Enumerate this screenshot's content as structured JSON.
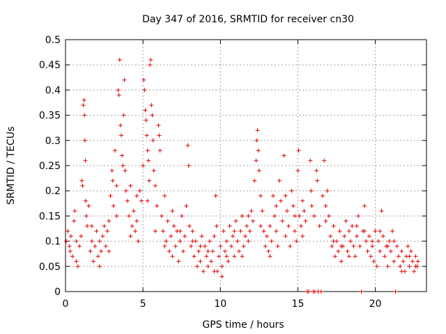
{
  "chart_data": {
    "type": "scatter",
    "title": "Day 347 of 2016, SRMTID for receiver cn30",
    "xlabel": "GPS time / hours",
    "ylabel": "SRMTID / TECUs",
    "xlim": [
      0,
      23.3
    ],
    "ylim": [
      0,
      0.5
    ],
    "x_ticks": [
      0,
      5,
      10,
      15,
      20
    ],
    "x_tick_labels": [
      "0",
      "5",
      "10",
      "15",
      "20"
    ],
    "y_ticks": [
      0,
      0.05,
      0.1,
      0.15,
      0.2,
      0.25,
      0.3,
      0.35,
      0.4,
      0.45,
      0.5
    ],
    "y_tick_labels": [
      "0",
      "0.05",
      "0.1",
      "0.15",
      "0.2",
      "0.25",
      "0.3",
      "0.35",
      "0.4",
      "0.45",
      "0.5"
    ],
    "grid": true,
    "marker": "+",
    "color": "#e00000",
    "series": [
      {
        "name": "SRMTID cn30",
        "points": [
          [
            0.05,
            0.1
          ],
          [
            0.15,
            0.12
          ],
          [
            0.25,
            0.09
          ],
          [
            0.35,
            0.11
          ],
          [
            0.45,
            0.07
          ],
          [
            0.55,
            0.14
          ],
          [
            0.6,
            0.16
          ],
          [
            0.7,
            0.06
          ],
          [
            0.8,
            0.05
          ],
          [
            0.9,
            0.09
          ],
          [
            1.0,
            0.11
          ],
          [
            1.05,
            0.22
          ],
          [
            1.1,
            0.21
          ],
          [
            1.15,
            0.37
          ],
          [
            1.2,
            0.38
          ],
          [
            1.22,
            0.35
          ],
          [
            1.25,
            0.3
          ],
          [
            1.28,
            0.26
          ],
          [
            1.3,
            0.18
          ],
          [
            1.35,
            0.15
          ],
          [
            1.4,
            0.13
          ],
          [
            1.5,
            0.17
          ],
          [
            1.6,
            0.08
          ],
          [
            1.7,
            0.1
          ],
          [
            1.8,
            0.06
          ],
          [
            1.9,
            0.09
          ],
          [
            2.0,
            0.12
          ],
          [
            2.1,
            0.07
          ],
          [
            2.2,
            0.1
          ],
          [
            2.3,
            0.08
          ],
          [
            2.4,
            0.11
          ],
          [
            2.5,
            0.13
          ],
          [
            2.6,
            0.09
          ],
          [
            2.7,
            0.12
          ],
          [
            2.8,
            0.14
          ],
          [
            2.9,
            0.19
          ],
          [
            3.0,
            0.24
          ],
          [
            3.05,
            0.22
          ],
          [
            3.1,
            0.17
          ],
          [
            3.2,
            0.28
          ],
          [
            3.3,
            0.21
          ],
          [
            3.4,
            0.4
          ],
          [
            3.45,
            0.39
          ],
          [
            3.5,
            0.46
          ],
          [
            3.55,
            0.33
          ],
          [
            3.6,
            0.31
          ],
          [
            3.65,
            0.27
          ],
          [
            3.7,
            0.25
          ],
          [
            3.75,
            0.35
          ],
          [
            3.8,
            0.42
          ],
          [
            3.85,
            0.24
          ],
          [
            3.9,
            0.2
          ],
          [
            4.0,
            0.18
          ],
          [
            4.1,
            0.15
          ],
          [
            4.2,
            0.21
          ],
          [
            4.3,
            0.13
          ],
          [
            4.4,
            0.16
          ],
          [
            4.5,
            0.12
          ],
          [
            4.6,
            0.14
          ],
          [
            4.7,
            0.1
          ],
          [
            4.8,
            0.2
          ],
          [
            4.9,
            0.18
          ],
          [
            5.0,
            0.25
          ],
          [
            5.05,
            0.42
          ],
          [
            5.1,
            0.4
          ],
          [
            5.15,
            0.36
          ],
          [
            5.2,
            0.34
          ],
          [
            5.25,
            0.31
          ],
          [
            5.3,
            0.28
          ],
          [
            5.35,
            0.26
          ],
          [
            5.4,
            0.22
          ],
          [
            5.45,
            0.45
          ],
          [
            5.5,
            0.46
          ],
          [
            5.55,
            0.37
          ],
          [
            5.6,
            0.35
          ],
          [
            5.65,
            0.3
          ],
          [
            5.7,
            0.24
          ],
          [
            5.8,
            0.21
          ],
          [
            5.9,
            0.17
          ],
          [
            6.0,
            0.33
          ],
          [
            6.05,
            0.31
          ],
          [
            6.1,
            0.28
          ],
          [
            6.2,
            0.15
          ],
          [
            6.3,
            0.12
          ],
          [
            6.4,
            0.19
          ],
          [
            6.5,
            0.1
          ],
          [
            6.6,
            0.14
          ],
          [
            6.7,
            0.08
          ],
          [
            6.8,
            0.11
          ],
          [
            6.9,
            0.07
          ],
          [
            7.0,
            0.13
          ],
          [
            7.1,
            0.09
          ],
          [
            7.2,
            0.12
          ],
          [
            7.3,
            0.06
          ],
          [
            7.4,
            0.1
          ],
          [
            7.5,
            0.15
          ],
          [
            7.6,
            0.08
          ],
          [
            7.7,
            0.11
          ],
          [
            7.8,
            0.17
          ],
          [
            7.9,
            0.29
          ],
          [
            7.95,
            0.25
          ],
          [
            8.0,
            0.13
          ],
          [
            8.1,
            0.09
          ],
          [
            8.2,
            0.12
          ],
          [
            8.3,
            0.07
          ],
          [
            8.4,
            0.1
          ],
          [
            8.5,
            0.05
          ],
          [
            8.6,
            0.08
          ],
          [
            8.7,
            0.06
          ],
          [
            8.8,
            0.11
          ],
          [
            8.9,
            0.04
          ],
          [
            9.0,
            0.09
          ],
          [
            9.1,
            0.07
          ],
          [
            9.2,
            0.05
          ],
          [
            9.3,
            0.1
          ],
          [
            9.4,
            0.06
          ],
          [
            9.5,
            0.08
          ],
          [
            9.6,
            0.11
          ],
          [
            9.7,
            0.19
          ],
          [
            9.75,
            0.13
          ],
          [
            9.8,
            0.04
          ],
          [
            9.9,
            0.07
          ],
          [
            10.0,
            0.09
          ],
          [
            10.1,
            0.05
          ],
          [
            10.2,
            0.12
          ],
          [
            10.3,
            0.08
          ],
          [
            10.4,
            0.1
          ],
          [
            10.5,
            0.06
          ],
          [
            10.6,
            0.13
          ],
          [
            10.7,
            0.09
          ],
          [
            10.8,
            0.11
          ],
          [
            10.9,
            0.07
          ],
          [
            11.0,
            0.14
          ],
          [
            11.1,
            0.1
          ],
          [
            11.2,
            0.08
          ],
          [
            11.3,
            0.12
          ],
          [
            11.4,
            0.15
          ],
          [
            11.5,
            0.09
          ],
          [
            11.6,
            0.11
          ],
          [
            11.7,
            0.13
          ],
          [
            11.8,
            0.1
          ],
          [
            11.9,
            0.12
          ],
          [
            12.0,
            0.16
          ],
          [
            12.1,
            0.14
          ],
          [
            12.2,
            0.22
          ],
          [
            12.3,
            0.26
          ],
          [
            12.35,
            0.3
          ],
          [
            12.4,
            0.32
          ],
          [
            12.45,
            0.28
          ],
          [
            12.5,
            0.24
          ],
          [
            12.6,
            0.19
          ],
          [
            12.7,
            0.16
          ],
          [
            12.8,
            0.12
          ],
          [
            12.9,
            0.09
          ],
          [
            13.0,
            0.11
          ],
          [
            13.1,
            0.08
          ],
          [
            13.2,
            0.13
          ],
          [
            13.3,
            0.1
          ],
          [
            13.4,
            0.19
          ],
          [
            13.5,
            0.15
          ],
          [
            13.6,
            0.12
          ],
          [
            13.7,
            0.09
          ],
          [
            13.8,
            0.22
          ],
          [
            13.9,
            0.18
          ],
          [
            14.0,
            0.14
          ],
          [
            14.1,
            0.27
          ],
          [
            14.2,
            0.11
          ],
          [
            14.3,
            0.16
          ],
          [
            14.4,
            0.13
          ],
          [
            14.5,
            0.09
          ],
          [
            14.6,
            0.2
          ],
          [
            14.7,
            0.17
          ],
          [
            14.8,
            0.12
          ],
          [
            14.9,
            0.1
          ],
          [
            15.0,
            0.24
          ],
          [
            15.05,
            0.28
          ],
          [
            15.1,
            0.15
          ],
          [
            15.2,
            0.13
          ],
          [
            15.3,
            0.11
          ],
          [
            15.4,
            0.16
          ],
          [
            15.5,
            0.14
          ],
          [
            15.6,
            0.0
          ],
          [
            15.7,
            0.0
          ],
          [
            15.8,
            0.26
          ],
          [
            15.85,
            0.2
          ],
          [
            15.9,
            0.17
          ],
          [
            16.0,
            0.0
          ],
          [
            16.05,
            0.15
          ],
          [
            16.1,
            0.0
          ],
          [
            16.2,
            0.24
          ],
          [
            16.25,
            0.22
          ],
          [
            16.3,
            0.0
          ],
          [
            16.4,
            0.13
          ],
          [
            16.5,
            0.0
          ],
          [
            16.6,
            0.19
          ],
          [
            16.7,
            0.26
          ],
          [
            16.8,
            0.17
          ],
          [
            16.9,
            0.2
          ],
          [
            17.0,
            0.15
          ],
          [
            17.1,
            0.11
          ],
          [
            17.2,
            0.09
          ],
          [
            17.3,
            0.13
          ],
          [
            17.4,
            0.07
          ],
          [
            17.5,
            0.1
          ],
          [
            17.6,
            0.08
          ],
          [
            17.7,
            0.12
          ],
          [
            17.8,
            0.06
          ],
          [
            17.9,
            0.09
          ],
          [
            18.0,
            0.11
          ],
          [
            18.1,
            0.14
          ],
          [
            18.2,
            0.08
          ],
          [
            18.3,
            0.12
          ],
          [
            18.4,
            0.1
          ],
          [
            18.5,
            0.13
          ],
          [
            18.6,
            0.09
          ],
          [
            18.7,
            0.07
          ],
          [
            18.8,
            0.11
          ],
          [
            18.9,
            0.15
          ],
          [
            19.0,
            0.09
          ],
          [
            19.1,
            0.0
          ],
          [
            19.2,
            0.12
          ],
          [
            19.3,
            0.17
          ],
          [
            19.4,
            0.1
          ],
          [
            19.5,
            0.08
          ],
          [
            19.6,
            0.11
          ],
          [
            19.7,
            0.07
          ],
          [
            19.8,
            0.09
          ],
          [
            19.9,
            0.06
          ],
          [
            20.0,
            0.12
          ],
          [
            20.1,
            0.05
          ],
          [
            20.2,
            0.1
          ],
          [
            20.3,
            0.08
          ],
          [
            20.4,
            0.16
          ],
          [
            20.5,
            0.11
          ],
          [
            20.6,
            0.07
          ],
          [
            20.7,
            0.09
          ],
          [
            20.8,
            0.05
          ],
          [
            20.9,
            0.1
          ],
          [
            21.0,
            0.08
          ],
          [
            21.1,
            0.12
          ],
          [
            21.2,
            0.06
          ],
          [
            21.3,
            0.0
          ],
          [
            21.4,
            0.09
          ],
          [
            21.5,
            0.07
          ],
          [
            21.6,
            0.05
          ],
          [
            21.7,
            0.08
          ],
          [
            21.8,
            0.06
          ],
          [
            21.9,
            0.04
          ],
          [
            22.0,
            0.07
          ],
          [
            22.1,
            0.09
          ],
          [
            22.2,
            0.05
          ],
          [
            22.3,
            0.08
          ],
          [
            22.4,
            0.06
          ],
          [
            22.5,
            0.04
          ],
          [
            22.6,
            0.07
          ],
          [
            22.7,
            0.05
          ],
          [
            22.75,
            0.06
          ],
          [
            0.3,
            0.08
          ],
          [
            0.7,
            0.1
          ],
          [
            1.7,
            0.13
          ],
          [
            2.2,
            0.05
          ],
          [
            2.8,
            0.08
          ],
          [
            3.3,
            0.15
          ],
          [
            4.2,
            0.11
          ],
          [
            4.6,
            0.19
          ],
          [
            5.3,
            0.18
          ],
          [
            5.8,
            0.12
          ],
          [
            6.4,
            0.09
          ],
          [
            6.9,
            0.16
          ],
          [
            7.4,
            0.12
          ],
          [
            8.2,
            0.1
          ],
          [
            8.7,
            0.09
          ],
          [
            9.2,
            0.08
          ],
          [
            9.6,
            0.04
          ],
          [
            10.1,
            0.03
          ],
          [
            10.4,
            0.07
          ],
          [
            10.9,
            0.12
          ],
          [
            11.4,
            0.07
          ],
          [
            11.8,
            0.15
          ],
          [
            12.6,
            0.13
          ],
          [
            13.2,
            0.07
          ],
          [
            13.6,
            0.17
          ],
          [
            14.2,
            0.19
          ],
          [
            14.8,
            0.15
          ],
          [
            15.3,
            0.18
          ],
          [
            16.8,
            0.14
          ],
          [
            17.3,
            0.1
          ],
          [
            17.8,
            0.09
          ],
          [
            18.3,
            0.07
          ],
          [
            18.8,
            0.13
          ],
          [
            19.3,
            0.12
          ],
          [
            19.8,
            0.1
          ],
          [
            20.3,
            0.12
          ],
          [
            20.8,
            0.09
          ],
          [
            21.2,
            0.1
          ],
          [
            21.7,
            0.04
          ],
          [
            22.2,
            0.07
          ],
          [
            22.6,
            0.05
          ]
        ]
      }
    ]
  }
}
